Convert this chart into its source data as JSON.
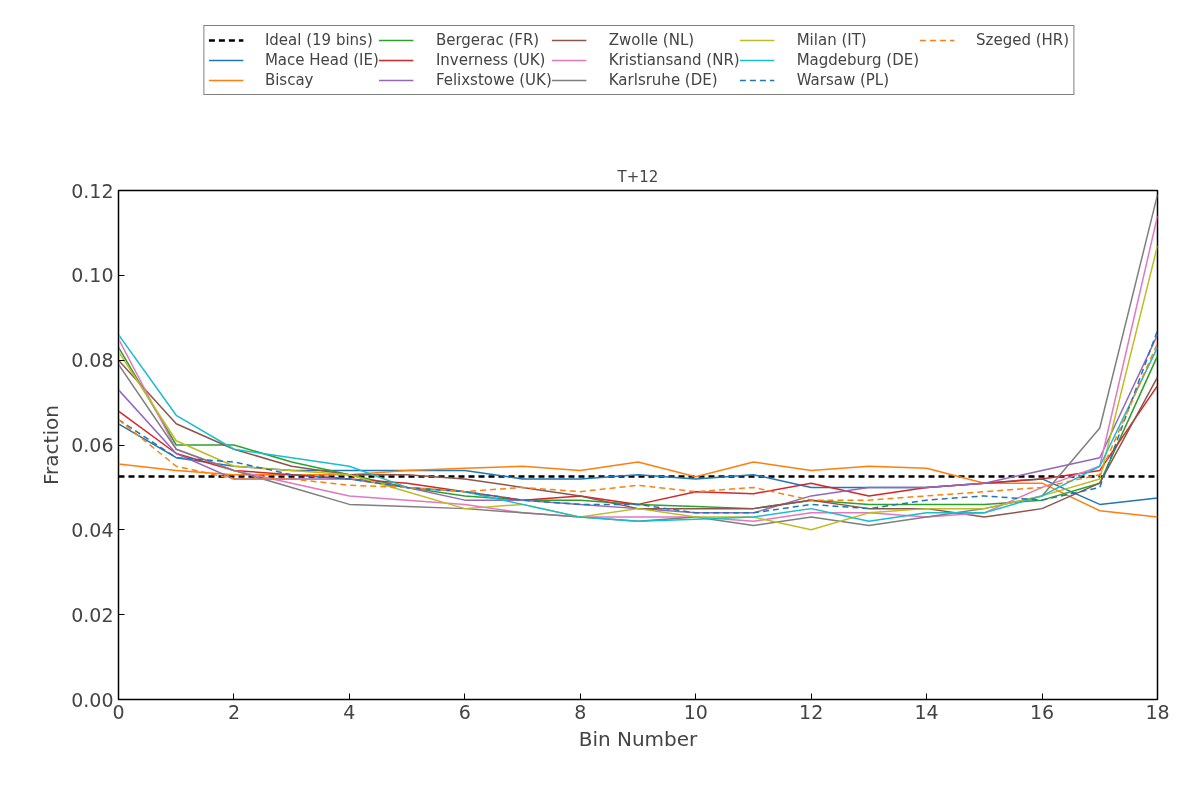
{
  "chart_data": {
    "type": "line",
    "title": "T+12",
    "xlabel": "Bin Number",
    "ylabel": "Fraction",
    "x": [
      0,
      1,
      2,
      3,
      4,
      5,
      6,
      7,
      8,
      9,
      10,
      11,
      12,
      13,
      14,
      15,
      16,
      17,
      18
    ],
    "xlim": [
      0,
      18
    ],
    "xticks": [
      0,
      2,
      4,
      6,
      8,
      10,
      12,
      14,
      16,
      18
    ],
    "ylim": [
      0,
      0.12
    ],
    "yticks": [
      {
        "value": 0,
        "label": "0.00"
      },
      {
        "value": 0.02,
        "label": "0.02"
      },
      {
        "value": 0.04,
        "label": "0.04"
      },
      {
        "value": 0.06,
        "label": "0.06"
      },
      {
        "value": 0.08,
        "label": "0.08"
      },
      {
        "value": 0.1,
        "label": "0.10"
      },
      {
        "value": 0.12,
        "label": "0.12"
      }
    ],
    "grid": false,
    "legend": "top",
    "marker": "none",
    "series": [
      {
        "name": "Ideal (19 bins)",
        "color": "#000000",
        "line_style": "dashed",
        "values": [
          0.0526,
          0.0526,
          0.0526,
          0.0526,
          0.0526,
          0.0526,
          0.0526,
          0.0526,
          0.0526,
          0.0526,
          0.0526,
          0.0526,
          0.0526,
          0.0526,
          0.0526,
          0.0526,
          0.0526,
          0.0526,
          0.0526
        ]
      },
      {
        "name": "Mace Head (IE)",
        "color": "#1f77b4",
        "line_style": "solid",
        "values": [
          0.065,
          0.057,
          0.055,
          0.054,
          0.054,
          0.054,
          0.054,
          0.052,
          0.052,
          0.053,
          0.052,
          0.053,
          0.05,
          0.05,
          0.05,
          0.051,
          0.052,
          0.046,
          0.0475
        ]
      },
      {
        "name": "Biscay",
        "color": "#ff7f0e",
        "line_style": "solid",
        "values": [
          0.0555,
          0.054,
          0.053,
          0.053,
          0.053,
          0.054,
          0.0545,
          0.055,
          0.054,
          0.056,
          0.0525,
          0.056,
          0.054,
          0.055,
          0.0545,
          0.051,
          0.051,
          0.0445,
          0.043
        ]
      },
      {
        "name": "Bergerac (FR)",
        "color": "#2ca02c",
        "line_style": "solid",
        "values": [
          0.083,
          0.06,
          0.06,
          0.056,
          0.053,
          0.05,
          0.048,
          0.047,
          0.047,
          0.046,
          0.0455,
          0.045,
          0.047,
          0.046,
          0.046,
          0.046,
          0.047,
          0.051,
          0.081
        ]
      },
      {
        "name": "Inverness (UK)",
        "color": "#d62728",
        "line_style": "solid",
        "values": [
          0.068,
          0.058,
          0.054,
          0.053,
          0.052,
          0.051,
          0.049,
          0.047,
          0.048,
          0.046,
          0.049,
          0.0485,
          0.051,
          0.048,
          0.05,
          0.051,
          0.052,
          0.054,
          0.074
        ]
      },
      {
        "name": "Felixstowe (UK)",
        "color": "#9467bd",
        "line_style": "solid",
        "values": [
          0.073,
          0.058,
          0.052,
          0.052,
          0.052,
          0.05,
          0.047,
          0.047,
          0.046,
          0.045,
          0.044,
          0.044,
          0.048,
          0.05,
          0.05,
          0.051,
          0.054,
          0.057,
          0.086
        ]
      },
      {
        "name": "Zwolle (NL)",
        "color": "#8c564b",
        "line_style": "solid",
        "values": [
          0.08,
          0.065,
          0.059,
          0.055,
          0.053,
          0.053,
          0.052,
          0.05,
          0.048,
          0.045,
          0.045,
          0.045,
          0.047,
          0.045,
          0.045,
          0.043,
          0.045,
          0.051,
          0.076
        ]
      },
      {
        "name": "Kristiansand (NR)",
        "color": "#e377c2",
        "line_style": "solid",
        "values": [
          0.085,
          0.059,
          0.054,
          0.051,
          0.048,
          0.047,
          0.046,
          0.044,
          0.043,
          0.043,
          0.043,
          0.042,
          0.044,
          0.044,
          0.043,
          0.044,
          0.05,
          0.055,
          0.114
        ]
      },
      {
        "name": "Karlsruhe (DE)",
        "color": "#7f7f7f",
        "line_style": "solid",
        "values": [
          0.079,
          0.059,
          0.054,
          0.05,
          0.046,
          0.0455,
          0.045,
          0.044,
          0.043,
          0.042,
          0.043,
          0.041,
          0.043,
          0.041,
          0.043,
          0.045,
          0.048,
          0.064,
          0.119
        ]
      },
      {
        "name": "Milan (IT)",
        "color": "#bcbd22",
        "line_style": "solid",
        "values": [
          0.082,
          0.061,
          0.055,
          0.054,
          0.053,
          0.049,
          0.045,
          0.046,
          0.043,
          0.045,
          0.043,
          0.043,
          0.04,
          0.044,
          0.045,
          0.045,
          0.048,
          0.052,
          0.107
        ]
      },
      {
        "name": "Magdeburg (DE)",
        "color": "#17becf",
        "line_style": "solid",
        "values": [
          0.086,
          0.067,
          0.059,
          0.057,
          0.055,
          0.05,
          0.049,
          0.046,
          0.043,
          0.042,
          0.0425,
          0.043,
          0.045,
          0.042,
          0.044,
          0.044,
          0.048,
          0.055,
          0.083
        ]
      },
      {
        "name": "Warsaw (PL)",
        "color": "#1f77b4",
        "line_style": "dashed",
        "values": [
          0.066,
          0.057,
          0.056,
          0.053,
          0.052,
          0.05,
          0.049,
          0.047,
          0.046,
          0.046,
          0.044,
          0.044,
          0.046,
          0.045,
          0.047,
          0.048,
          0.047,
          0.05,
          0.087
        ]
      },
      {
        "name": "Szeged (HR)",
        "color": "#ff7f0e",
        "line_style": "dashed",
        "values": [
          0.066,
          0.055,
          0.052,
          0.052,
          0.0505,
          0.05,
          0.049,
          0.05,
          0.049,
          0.0505,
          0.049,
          0.05,
          0.047,
          0.047,
          0.048,
          0.049,
          0.05,
          0.053,
          0.084
        ]
      }
    ]
  }
}
